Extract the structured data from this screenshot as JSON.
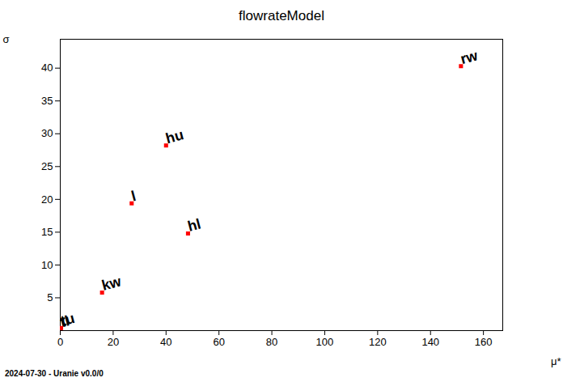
{
  "chart_data": {
    "type": "scatter",
    "title": "flowrateModel",
    "x_label": "μ*",
    "y_label": "σ",
    "x": [
      151.5,
      40,
      27,
      48.3,
      15.8,
      0.3,
      0.1
    ],
    "values": [
      40.3,
      28.2,
      19.4,
      14.8,
      5.8,
      0.4,
      0.2
    ],
    "annotations": [
      "rw",
      "hu",
      "l",
      "hl",
      "kw",
      "tu",
      "tl"
    ],
    "color": "#ff0000",
    "marker": "square",
    "xlim": [
      0,
      167.3
    ],
    "xticks": [
      0,
      20,
      40,
      60,
      80,
      100,
      120,
      140,
      160
    ],
    "ylim": [
      0,
      44.4
    ],
    "yticks": [
      5,
      10,
      15,
      20,
      25,
      30,
      35,
      40
    ],
    "grid": false,
    "caption": "2024-07-30 - Uranie v0.0/0"
  }
}
